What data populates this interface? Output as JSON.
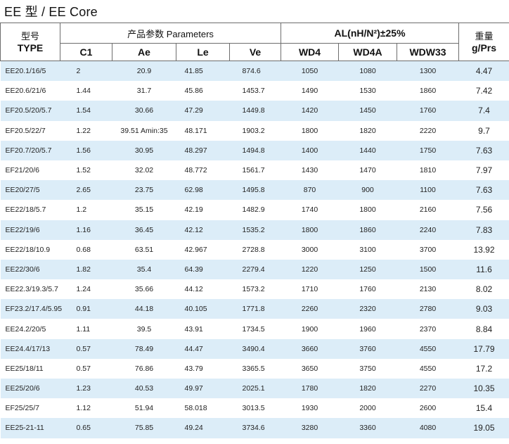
{
  "title": "EE 型  / EE Core",
  "header": {
    "type_cn": "型号",
    "type_en": "TYPE",
    "params": "产品参数  Parameters",
    "al": "AL(nH/N²)±25%",
    "weight_cn": "重量",
    "weight_en": "g/Prs",
    "cols": [
      "C1",
      "Ae",
      "Le",
      "Ve",
      "WD4",
      "WD4A",
      "WDW33"
    ]
  },
  "rows": [
    {
      "type": "EE20.1/16/5",
      "c1": "2",
      "ae": "20.9",
      "le": "41.85",
      "ve": "874.6",
      "wd4": "1050",
      "wd4a": "1080",
      "wdw33": "1300",
      "g": "4.47"
    },
    {
      "type": "EE20.6/21/6",
      "c1": "1.44",
      "ae": "31.7",
      "le": "45.86",
      "ve": "1453.7",
      "wd4": "1490",
      "wd4a": "1530",
      "wdw33": "1860",
      "g": "7.42"
    },
    {
      "type": "EF20.5/20/5.7",
      "c1": "1.54",
      "ae": "30.66",
      "le": "47.29",
      "ve": "1449.8",
      "wd4": "1420",
      "wd4a": "1450",
      "wdw33": "1760",
      "g": "7.4"
    },
    {
      "type": "EF20.5/22/7",
      "c1": "1.22",
      "ae": "39.51 Amin:35",
      "le": "48.171",
      "ve": "1903.2",
      "wd4": "1800",
      "wd4a": "1820",
      "wdw33": "2220",
      "g": "9.7"
    },
    {
      "type": "EF20.7/20/5.7",
      "c1": "1.56",
      "ae": "30.95",
      "le": "48.297",
      "ve": "1494.8",
      "wd4": "1400",
      "wd4a": "1440",
      "wdw33": "1750",
      "g": "7.63"
    },
    {
      "type": "EF21/20/6",
      "c1": "1.52",
      "ae": "32.02",
      "le": "48.772",
      "ve": "1561.7",
      "wd4": "1430",
      "wd4a": "1470",
      "wdw33": "1810",
      "g": "7.97"
    },
    {
      "type": "EE20/27/5",
      "c1": "2.65",
      "ae": "23.75",
      "le": "62.98",
      "ve": "1495.8",
      "wd4": "870",
      "wd4a": "900",
      "wdw33": "1100",
      "g": "7.63"
    },
    {
      "type": "EE22/18/5.7",
      "c1": "1.2",
      "ae": "35.15",
      "le": "42.19",
      "ve": "1482.9",
      "wd4": "1740",
      "wd4a": "1800",
      "wdw33": "2160",
      "g": "7.56"
    },
    {
      "type": "EE22/19/6",
      "c1": "1.16",
      "ae": "36.45",
      "le": "42.12",
      "ve": "1535.2",
      "wd4": "1800",
      "wd4a": "1860",
      "wdw33": "2240",
      "g": "7.83"
    },
    {
      "type": "EE22/18/10.9",
      "c1": "0.68",
      "ae": "63.51",
      "le": "42.967",
      "ve": "2728.8",
      "wd4": "3000",
      "wd4a": "3100",
      "wdw33": "3700",
      "g": "13.92"
    },
    {
      "type": "EE22/30/6",
      "c1": "1.82",
      "ae": "35.4",
      "le": "64.39",
      "ve": "2279.4",
      "wd4": "1220",
      "wd4a": "1250",
      "wdw33": "1500",
      "g": "11.6"
    },
    {
      "type": "EE22.3/19.3/5.7",
      "c1": "1.24",
      "ae": "35.66",
      "le": "44.12",
      "ve": "1573.2",
      "wd4": "1710",
      "wd4a": "1760",
      "wdw33": "2130",
      "g": "8.02"
    },
    {
      "type": "EF23.2/17.4/5.95",
      "c1": "0.91",
      "ae": "44.18",
      "le": "40.105",
      "ve": "1771.8",
      "wd4": "2260",
      "wd4a": "2320",
      "wdw33": "2780",
      "g": "9.03"
    },
    {
      "type": "EE24.2/20/5",
      "c1": "1.11",
      "ae": "39.5",
      "le": "43.91",
      "ve": "1734.5",
      "wd4": "1900",
      "wd4a": "1960",
      "wdw33": "2370",
      "g": "8.84"
    },
    {
      "type": "EE24.4/17/13",
      "c1": "0.57",
      "ae": "78.49",
      "le": "44.47",
      "ve": "3490.4",
      "wd4": "3660",
      "wd4a": "3760",
      "wdw33": "4550",
      "g": "17.79"
    },
    {
      "type": "EE25/18/11",
      "c1": "0.57",
      "ae": "76.86",
      "le": "43.79",
      "ve": "3365.5",
      "wd4": "3650",
      "wd4a": "3750",
      "wdw33": "4550",
      "g": "17.2"
    },
    {
      "type": "EE25/20/6",
      "c1": "1.23",
      "ae": "40.53",
      "le": "49.97",
      "ve": "2025.1",
      "wd4": "1780",
      "wd4a": "1820",
      "wdw33": "2270",
      "g": "10.35"
    },
    {
      "type": "EF25/25/7",
      "c1": "1.12",
      "ae": "51.94",
      "le": "58.018",
      "ve": "3013.5",
      "wd4": "1930",
      "wd4a": "2000",
      "wdw33": "2600",
      "g": "15.4"
    },
    {
      "type": "EE25-21-11",
      "c1": "0.65",
      "ae": "75.85",
      "le": "49.24",
      "ve": "3734.6",
      "wd4": "3280",
      "wd4a": "3360",
      "wdw33": "4080",
      "g": "19.05"
    }
  ]
}
